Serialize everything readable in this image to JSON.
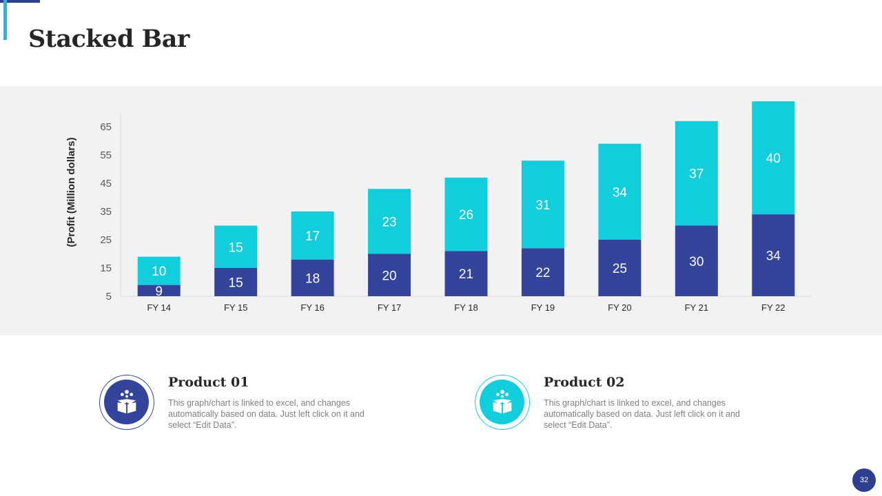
{
  "page": {
    "title": "Stacked Bar",
    "page_number": "32"
  },
  "colors": {
    "series1": "#33449a",
    "series2": "#12cedd",
    "axis_text": "#595959",
    "panel": "#f2f2f2"
  },
  "chart_data": {
    "type": "bar",
    "stacked": true,
    "categories": [
      "FY 14",
      "FY 15",
      "FY 16",
      "FY 17",
      "FY 18",
      "FY 19",
      "FY 20",
      "FY 21",
      "FY 22"
    ],
    "series": [
      {
        "name": "Product 01",
        "values": [
          9,
          15,
          18,
          20,
          21,
          22,
          25,
          30,
          34
        ]
      },
      {
        "name": "Product 02",
        "values": [
          10,
          15,
          17,
          23,
          26,
          31,
          34,
          37,
          40
        ]
      }
    ],
    "title": "",
    "xlabel": "",
    "ylabel": "(Profit  (Million dollars)",
    "ylim": [
      5,
      70
    ],
    "yticks": [
      5,
      15,
      25,
      35,
      45,
      55,
      65
    ],
    "grid": false,
    "legend": "none"
  },
  "products": [
    {
      "title": "Product 01",
      "description": "This graph/chart is linked to excel, and changes automatically based on data. Just left click on it and select “Edit Data”.",
      "icon": "open-box-icon"
    },
    {
      "title": "Product 02",
      "description": "This graph/chart is linked to excel, and changes automatically based on data. Just left click on it and select “Edit Data”.",
      "icon": "open-box-icon"
    }
  ]
}
